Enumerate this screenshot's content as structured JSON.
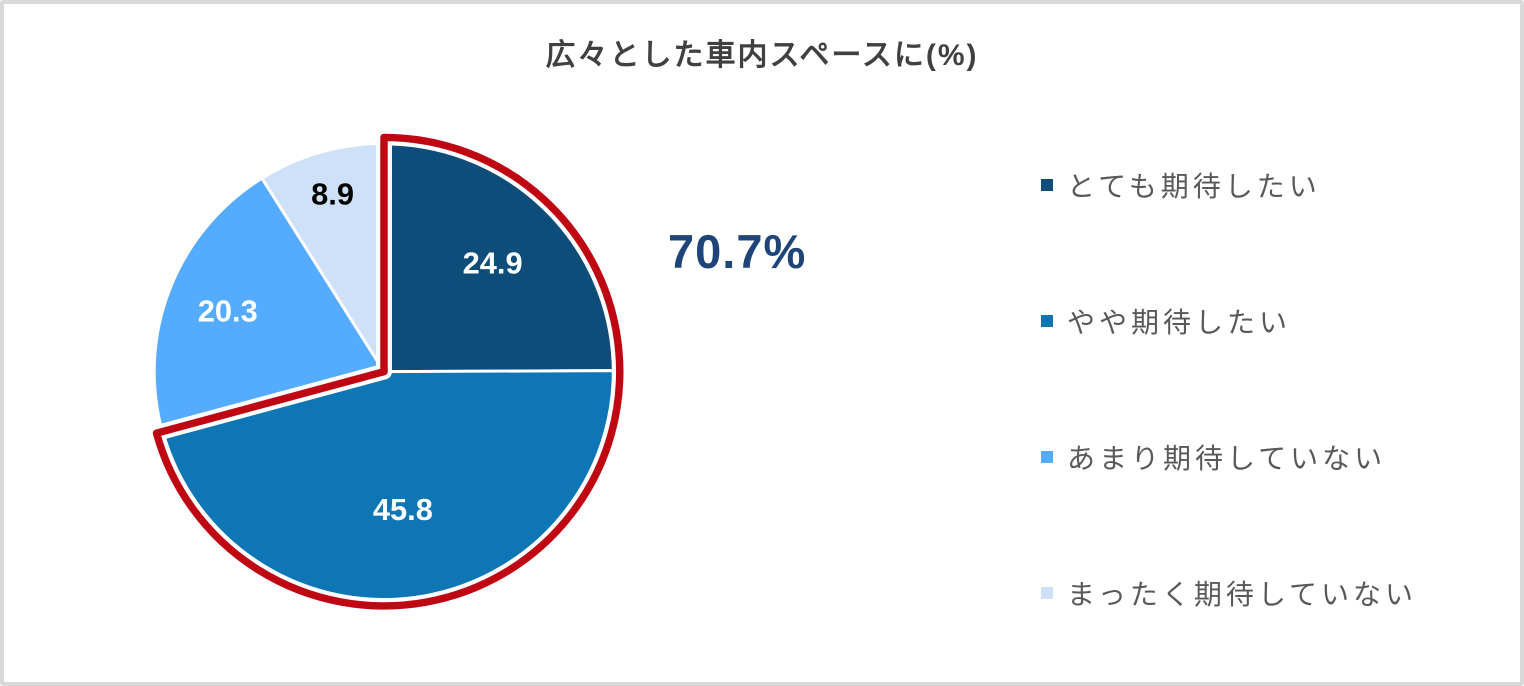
{
  "frame": {
    "background_color": "#ffffff",
    "border_color": "#d9d9d9"
  },
  "chart_data": {
    "type": "pie",
    "title": "広々とした車内スペースに(%)",
    "title_color": "#404040",
    "legend_position": "right",
    "start_angle_deg": 0,
    "direction": "clockwise",
    "slices": [
      {
        "label": "とても期待したい",
        "value": 24.9,
        "color": "#0e4d79",
        "label_color": "#ffffff"
      },
      {
        "label": "やや期待したい",
        "value": 45.8,
        "color": "#0f76b5",
        "label_color": "#ffffff"
      },
      {
        "label": "あまり期待していない",
        "value": 20.3,
        "color": "#55abfd",
        "label_color": "#ffffff"
      },
      {
        "label": "まったく期待していない",
        "value": 8.9,
        "color": "#cfe0f9",
        "label_color": "#000000"
      }
    ],
    "highlight": {
      "annotation": "70.7%",
      "annotation_color": "#1f4478",
      "covers_slices": [
        0,
        1
      ],
      "outline_color": "#be0712"
    },
    "legend_text_color": "#595959"
  }
}
